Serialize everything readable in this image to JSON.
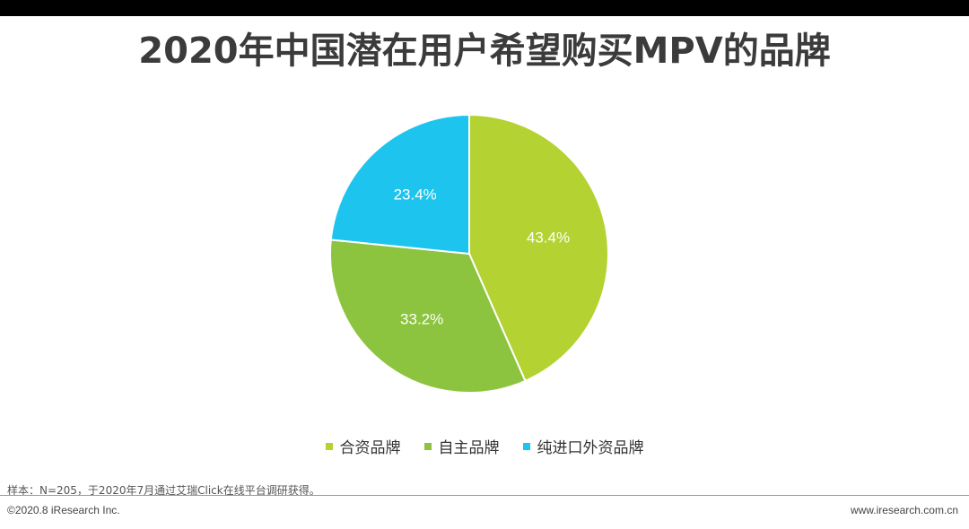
{
  "title": "2020年中国潜在用户希望购买MPV的品牌",
  "chart_data": {
    "type": "pie",
    "title": "2020年中国潜在用户希望购买MPV的品牌",
    "labels": [
      "合资品牌",
      "自主品牌",
      "纯进口外资品牌"
    ],
    "values": [
      43.4,
      33.2,
      23.4
    ],
    "value_labels": [
      "43.4%",
      "33.2%",
      "23.4%"
    ],
    "colors": [
      "#b4d232",
      "#8cc43f",
      "#1dc4ee"
    ],
    "legend_position": "bottom"
  },
  "source_note": "样本：N=205，于2020年7月通过艾瑞Click在线平台调研获得。",
  "footer": {
    "copyright": "©2020.8 iResearch Inc.",
    "website": "www.iresearch.com.cn"
  }
}
